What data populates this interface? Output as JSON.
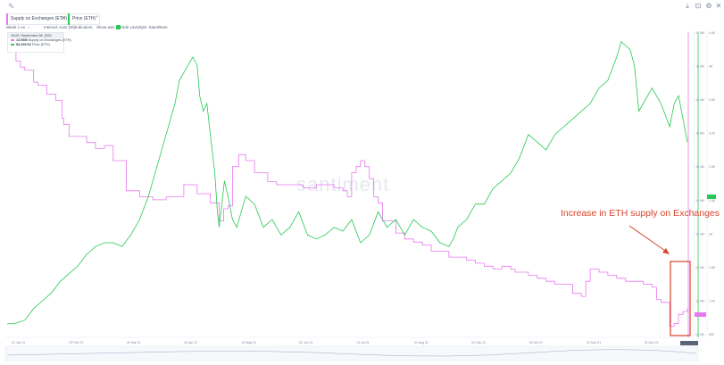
{
  "header": {
    "metrics": [
      {
        "label": "Supply on Exchanges (ETH)",
        "color": "#e778f0"
      },
      {
        "label": "Price (ETH)",
        "color": "#26c953"
      }
    ],
    "add_label": "+"
  },
  "settings": {
    "items": [
      "Week 1 ex",
      "Interval: Auto (6h)",
      "Indicators",
      "Show axis",
      "Hide LineStyle: Stars/Bars"
    ]
  },
  "tooltip": {
    "date": "19:00, September 08, 2021",
    "rows": [
      {
        "value": "13.98M",
        "label": "Supply on Exchanges (ETH)",
        "color": "#e778f0"
      },
      {
        "value": "$3,499.92",
        "label": "Price (ETH)",
        "color": "#26c953"
      }
    ]
  },
  "watermark": "santiment",
  "annotation": {
    "text": "Increase in ETH supply on Exchanges",
    "color": "#d9442c"
  },
  "colors": {
    "supply": "#e778f0",
    "price": "#26c953",
    "annotation": "#d9442c"
  },
  "chart_data": {
    "type": "line",
    "title": "",
    "x_ticks": [
      "01 Jan 21",
      "02 Feb 21",
      "01 Mar 21",
      "02 Apr 21",
      "01 May 21",
      "02 Jun 21",
      "01 Jul 21",
      "01 Aug 21",
      "01 Sep 21",
      "02 Oct 21",
      "01 Nov 21",
      "01 Dec 21"
    ],
    "series": [
      {
        "name": "Supply on Exchanges (ETH)",
        "axis": "left-inner",
        "x": [
          0,
          10,
          15,
          20,
          30,
          35,
          45,
          55,
          62,
          64,
          70,
          80,
          90,
          100,
          110,
          120,
          135,
          150,
          165,
          180,
          200,
          215,
          230,
          240,
          245,
          250,
          255,
          262,
          270,
          280,
          295,
          305,
          320,
          335,
          350,
          360,
          370,
          380,
          385,
          390,
          395,
          400,
          405,
          410,
          415,
          420,
          425,
          430,
          440,
          450,
          460,
          470,
          480,
          490,
          500,
          510,
          520,
          530,
          540,
          550,
          560,
          570,
          575,
          580,
          590,
          600,
          610,
          620,
          630,
          640,
          650,
          655,
          660,
          670,
          680,
          690,
          700,
          710,
          720,
          730,
          735,
          740,
          745,
          750,
          755,
          760,
          765,
          770
        ],
        "y": [
          17.1,
          16.95,
          16.85,
          16.8,
          16.6,
          16.55,
          16.4,
          16.3,
          16.0,
          15.9,
          15.7,
          15.7,
          15.6,
          15.5,
          15.55,
          15.3,
          14.8,
          14.7,
          14.65,
          14.7,
          14.9,
          14.75,
          14.6,
          14.3,
          14.5,
          14.55,
          15.2,
          15.4,
          15.3,
          15.1,
          14.95,
          14.9,
          14.9,
          14.85,
          14.9,
          14.9,
          14.85,
          14.8,
          14.7,
          15.1,
          15.2,
          15.3,
          15.2,
          15.0,
          14.7,
          14.6,
          14.3,
          14.3,
          14.1,
          14.0,
          13.95,
          13.9,
          13.8,
          13.8,
          13.7,
          13.7,
          13.65,
          13.6,
          13.55,
          13.5,
          13.55,
          13.5,
          13.45,
          13.45,
          13.4,
          13.35,
          13.3,
          13.25,
          13.25,
          13.1,
          13.05,
          13.3,
          13.5,
          13.45,
          13.4,
          13.35,
          13.3,
          13.3,
          13.25,
          13.2,
          13.0,
          12.95,
          12.95,
          12.55,
          12.6,
          12.75,
          12.8,
          12.85
        ],
        "note_axis_range": [
          12.4,
          17.4
        ]
      },
      {
        "name": "Price (ETH)",
        "axis": "right",
        "x": [
          0,
          10,
          20,
          30,
          40,
          50,
          60,
          70,
          80,
          90,
          100,
          110,
          120,
          130,
          140,
          150,
          160,
          170,
          180,
          185,
          190,
          195,
          200,
          205,
          210,
          215,
          218,
          222,
          226,
          230,
          235,
          238,
          240,
          243,
          246,
          250,
          255,
          260,
          265,
          270,
          280,
          290,
          300,
          310,
          320,
          330,
          340,
          350,
          360,
          370,
          380,
          390,
          400,
          410,
          420,
          430,
          440,
          450,
          460,
          470,
          480,
          490,
          500,
          505,
          510,
          520,
          530,
          540,
          550,
          560,
          570,
          580,
          590,
          600,
          610,
          620,
          630,
          640,
          650,
          660,
          670,
          680,
          690,
          695,
          700,
          705,
          710,
          715,
          720,
          730,
          740,
          750,
          755,
          760,
          765,
          770
        ],
        "y": [
          750,
          760,
          800,
          950,
          1050,
          1150,
          1300,
          1400,
          1500,
          1650,
          1750,
          1800,
          1800,
          1750,
          1900,
          2100,
          2400,
          2800,
          3200,
          3400,
          3600,
          3900,
          4000,
          4100,
          4200,
          4100,
          3700,
          3500,
          3600,
          3200,
          2700,
          2200,
          2000,
          2300,
          2600,
          2400,
          2100,
          2000,
          2200,
          2400,
          2300,
          2000,
          2100,
          1900,
          2000,
          2200,
          1900,
          1850,
          1900,
          2000,
          1950,
          2100,
          1800,
          1900,
          2200,
          2000,
          2100,
          1900,
          2100,
          2000,
          1950,
          1800,
          1750,
          1850,
          2000,
          2100,
          2300,
          2300,
          2500,
          2600,
          2700,
          2900,
          3200,
          3100,
          3000,
          3200,
          3300,
          3400,
          3500,
          3600,
          3800,
          3900,
          4200,
          4400,
          4350,
          4300,
          4100,
          3500,
          3600,
          3800,
          3600,
          3300,
          3600,
          3700,
          3400,
          3100
        ],
        "note_axis_range": [
          600,
          4500
        ]
      }
    ],
    "left_axis_ticks": [
      "17.4M",
      "16.9M",
      "16.4M",
      "15.9M",
      "15.4M",
      "14.9M",
      "14.4M",
      "13.9M",
      "13.4M",
      "12.9M"
    ],
    "right_axis_ticks": [
      "4.4K",
      "4K",
      "3.6K",
      "3.2K",
      "2.8K",
      "2.4K",
      "2K",
      "1.6K",
      "1.2K",
      "800"
    ],
    "grid": false,
    "legend": "top-left"
  }
}
